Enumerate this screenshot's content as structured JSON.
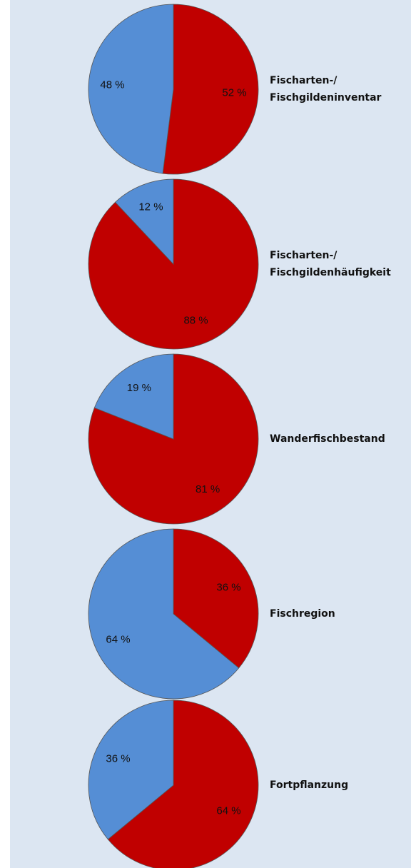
{
  "chart_data": [
    {
      "type": "pie",
      "title": [
        "Fischarten-/",
        "Fischgildeninventar"
      ],
      "values": [
        52,
        48
      ],
      "value_labels": [
        "52 %",
        "48 %"
      ],
      "colors": [
        "#c00000",
        "#558ed5"
      ]
    },
    {
      "type": "pie",
      "title": [
        "Fischarten-/",
        "Fischgildenhäufigkeit"
      ],
      "values": [
        88,
        12
      ],
      "value_labels": [
        "88 %",
        "12 %"
      ],
      "colors": [
        "#c00000",
        "#558ed5"
      ]
    },
    {
      "type": "pie",
      "title": [
        "Wanderfischbestand"
      ],
      "values": [
        81,
        19
      ],
      "value_labels": [
        "81 %",
        "19 %"
      ],
      "colors": [
        "#c00000",
        "#558ed5"
      ]
    },
    {
      "type": "pie",
      "title": [
        "Fischregion"
      ],
      "values": [
        36,
        64
      ],
      "value_labels": [
        "36 %",
        "64 %"
      ],
      "colors": [
        "#c00000",
        "#558ed5"
      ]
    },
    {
      "type": "pie",
      "title": [
        "Fortpflanzung"
      ],
      "values": [
        64,
        36
      ],
      "value_labels": [
        "64 %",
        "36 %"
      ],
      "colors": [
        "#c00000",
        "#558ed5"
      ]
    }
  ]
}
